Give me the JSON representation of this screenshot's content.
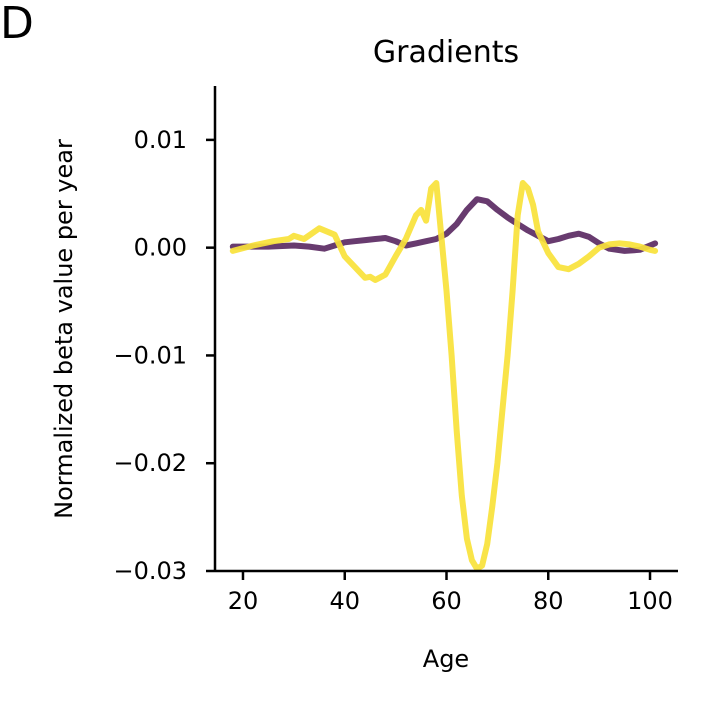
{
  "panel_label": "D",
  "chart_data": {
    "type": "line",
    "title": "Gradients",
    "xlabel": "Age",
    "ylabel": "Normalized beta value per year",
    "xlim": [
      14.5,
      105.5
    ],
    "ylim": [
      -0.03,
      0.015
    ],
    "xticks": [
      20,
      40,
      60,
      80,
      100
    ],
    "xtick_labels": [
      "20",
      "40",
      "60",
      "80",
      "100"
    ],
    "yticks": [
      0.01,
      0.0,
      -0.01,
      -0.02,
      -0.03
    ],
    "ytick_labels": [
      "0.01",
      "0.00",
      "−0.01",
      "−0.02",
      "−0.03"
    ],
    "grid": false,
    "legend": "none",
    "series": [
      {
        "color": "#5b2a63",
        "x": [
          18,
          25,
          30,
          33,
          36,
          38,
          40,
          42,
          44,
          46,
          48,
          50,
          52,
          54,
          56,
          58,
          60,
          62,
          64,
          66,
          68,
          70,
          72,
          74,
          76,
          78,
          80,
          82,
          84,
          86,
          88,
          90,
          92,
          95,
          98,
          101
        ],
        "y": [
          0.0001,
          0.0001,
          0.0002,
          0.0001,
          -0.0001,
          0.0002,
          0.0005,
          0.0006,
          0.0007,
          0.0008,
          0.0009,
          0.0006,
          0.0002,
          0.0004,
          0.0006,
          0.0008,
          0.0013,
          0.0022,
          0.0035,
          0.0045,
          0.0043,
          0.0035,
          0.0028,
          0.0022,
          0.0016,
          0.0011,
          0.0006,
          0.0008,
          0.0011,
          0.0013,
          0.001,
          0.0004,
          -0.0001,
          -0.0003,
          -0.0002,
          0.0004
        ]
      },
      {
        "color": "#f9e23a",
        "x": [
          18,
          22,
          26,
          29,
          30,
          32,
          35,
          38,
          40,
          42,
          44,
          45,
          46,
          48,
          50,
          52,
          54,
          55,
          56,
          57,
          58,
          59,
          60,
          61,
          62,
          63,
          64,
          65,
          66,
          67,
          68,
          69,
          70,
          71,
          72,
          73,
          74,
          75,
          76,
          77,
          78,
          79,
          80,
          82,
          84,
          86,
          88,
          90,
          92,
          94,
          96,
          98,
          100,
          101
        ],
        "y": [
          -0.0003,
          0.0002,
          0.0006,
          0.0008,
          0.0011,
          0.0008,
          0.0018,
          0.0012,
          -0.0008,
          -0.0018,
          -0.0028,
          -0.0027,
          -0.003,
          -0.0025,
          -0.0008,
          0.0008,
          0.003,
          0.0035,
          0.0025,
          0.0055,
          0.006,
          0.001,
          -0.004,
          -0.01,
          -0.017,
          -0.023,
          -0.027,
          -0.029,
          -0.0298,
          -0.0295,
          -0.0275,
          -0.024,
          -0.02,
          -0.015,
          -0.01,
          -0.004,
          0.003,
          0.006,
          0.0055,
          0.004,
          0.0015,
          0.0005,
          -0.0005,
          -0.0018,
          -0.002,
          -0.0015,
          -0.0008,
          0.0,
          0.0003,
          0.0004,
          0.0003,
          0.0001,
          -0.0002,
          -0.0003
        ]
      }
    ]
  }
}
